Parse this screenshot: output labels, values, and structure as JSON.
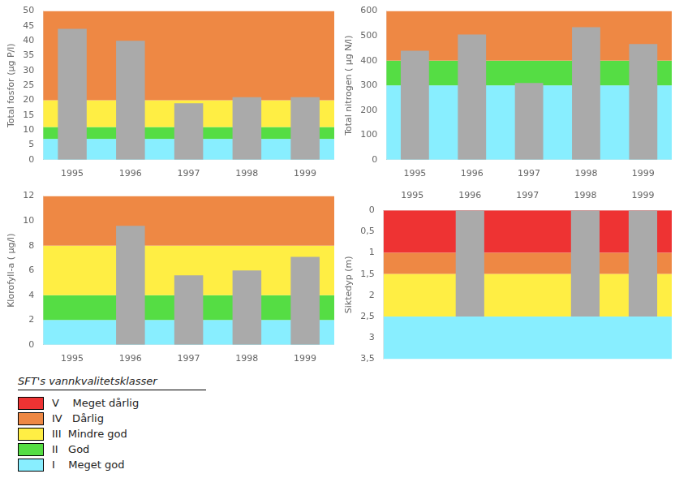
{
  "chart_data": [
    {
      "type": "bar",
      "ylabel": "Total fosfor (μg P/l)",
      "categories": [
        "1995",
        "1996",
        "1997",
        "1998",
        "1999"
      ],
      "values": [
        44,
        40,
        19,
        21,
        21
      ],
      "color": "#AAAAAA",
      "ylim": [
        0,
        50
      ],
      "yticks": [
        0,
        5,
        10,
        15,
        20,
        25,
        30,
        35,
        40,
        45,
        50
      ],
      "grid": false,
      "bands": [
        {
          "ymin": 0,
          "ymax": 7,
          "color": "#88EEFF"
        },
        {
          "ymin": 7,
          "ymax": 11,
          "color": "#55DD44"
        },
        {
          "ymin": 11,
          "ymax": 20,
          "color": "#FFEE44"
        },
        {
          "ymin": 20,
          "ymax": 50,
          "color": "#EE8844"
        }
      ]
    },
    {
      "type": "bar",
      "ylabel": "Total nitrogen ( μg N/l)",
      "categories": [
        "1995",
        "1996",
        "1997",
        "1998",
        "1999"
      ],
      "values": [
        440,
        505,
        310,
        535,
        467
      ],
      "color": "#AAAAAA",
      "ylim": [
        0,
        600
      ],
      "yticks": [
        0,
        100,
        200,
        300,
        400,
        500,
        600
      ],
      "grid": false,
      "bands": [
        {
          "ymin": 0,
          "ymax": 300,
          "color": "#88EEFF"
        },
        {
          "ymin": 300,
          "ymax": 400,
          "color": "#55DD44"
        },
        {
          "ymin": 400,
          "ymax": 600,
          "color": "#EE8844"
        }
      ]
    },
    {
      "type": "bar",
      "ylabel": "Klorofyll-a ( μg/l)",
      "categories": [
        "1995",
        "1996",
        "1997",
        "1998",
        "1999"
      ],
      "values": [
        null,
        9.6,
        5.6,
        6.0,
        7.1
      ],
      "color": "#AAAAAA",
      "ylim": [
        0,
        12
      ],
      "yticks": [
        0,
        2,
        4,
        6,
        8,
        10,
        12
      ],
      "grid": false,
      "bands": [
        {
          "ymin": 0,
          "ymax": 2,
          "color": "#88EEFF"
        },
        {
          "ymin": 2,
          "ymax": 4,
          "color": "#55DD44"
        },
        {
          "ymin": 4,
          "ymax": 8,
          "color": "#FFEE44"
        },
        {
          "ymin": 8,
          "ymax": 12,
          "color": "#EE8844"
        }
      ]
    },
    {
      "type": "bar",
      "ylabel": "Siktedyp (m)",
      "categories": [
        "1995",
        "1996",
        "1997",
        "1998",
        "1999"
      ],
      "values": [
        null,
        2.5,
        null,
        2.5,
        2.5
      ],
      "color": "#AAAAAA",
      "ylim": [
        3.5,
        0
      ],
      "yticks": [
        0,
        {
          "value": 0.5,
          "label": "0,5"
        },
        1,
        {
          "value": 1.5,
          "label": "1,5"
        },
        2,
        {
          "value": 2.5,
          "label": "2,5"
        },
        3,
        {
          "value": 3.5,
          "label": "3,5"
        }
      ],
      "grid": false,
      "bands": [
        {
          "ymin": 0,
          "ymax": 1.0,
          "color": "#EE3333"
        },
        {
          "ymin": 1.0,
          "ymax": 1.5,
          "color": "#EE8844"
        },
        {
          "ymin": 1.5,
          "ymax": 2.5,
          "color": "#FFEE44"
        },
        {
          "ymin": 2.5,
          "ymax": 3.5,
          "color": "#88EEFF"
        }
      ]
    }
  ],
  "class_legend": {
    "title": "SFT's vannkvalitetsklasser",
    "items": [
      {
        "color": "#EE3333",
        "name": "V    Meget dårlig"
      },
      {
        "color": "#EE8844",
        "name": "IV   Dårlig"
      },
      {
        "color": "#FFEE44",
        "name": "III  Mindre god"
      },
      {
        "color": "#55DD44",
        "name": "II   God"
      },
      {
        "color": "#88EEFF",
        "name": "I    Meget god"
      }
    ]
  }
}
